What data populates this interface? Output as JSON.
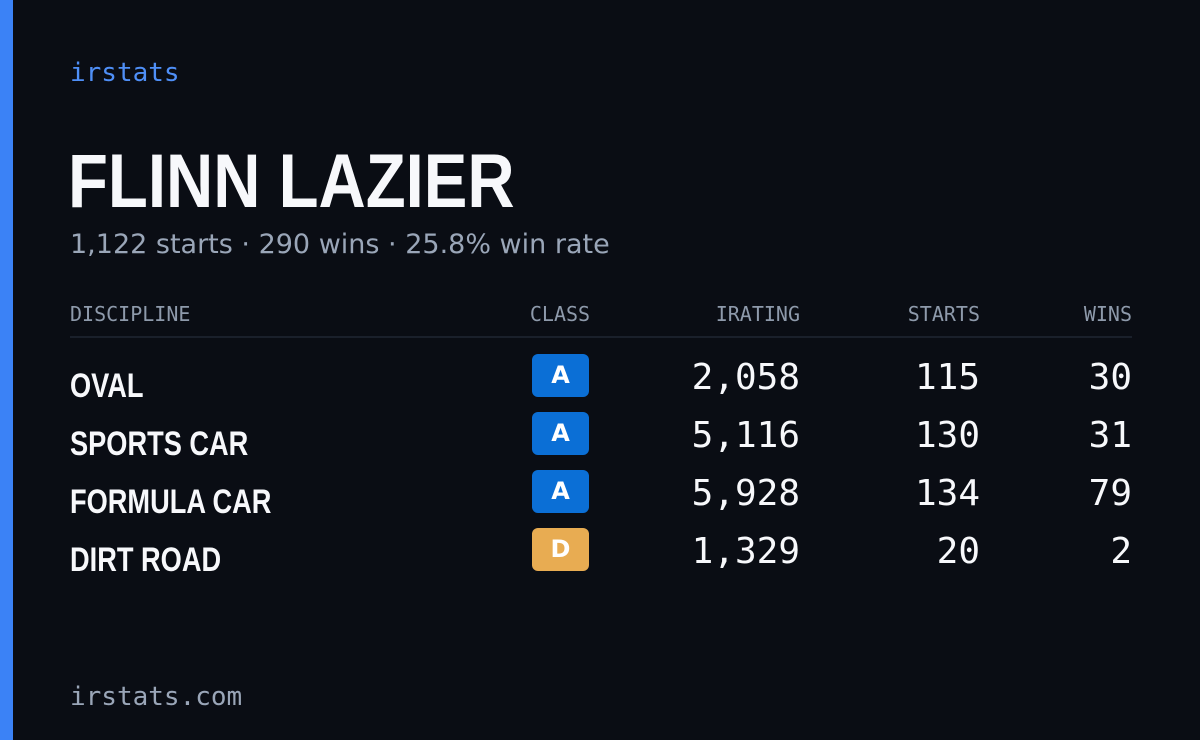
{
  "brand": "irstats",
  "driver": {
    "name": "FLINN LAZIER",
    "summary": "1,122 starts · 290 wins · 25.8% win rate"
  },
  "table": {
    "headers": {
      "discipline": "DISCIPLINE",
      "class": "CLASS",
      "irating": "IRATING",
      "starts": "STARTS",
      "wins": "WINS"
    },
    "rows": [
      {
        "discipline": "OVAL",
        "class": "A",
        "irating": "2,058",
        "starts": "115",
        "wins": "30"
      },
      {
        "discipline": "SPORTS CAR",
        "class": "A",
        "irating": "5,116",
        "starts": "130",
        "wins": "31"
      },
      {
        "discipline": "FORMULA CAR",
        "class": "A",
        "irating": "5,928",
        "starts": "134",
        "wins": "79"
      },
      {
        "discipline": "DIRT ROAD",
        "class": "D",
        "irating": "1,329",
        "starts": "20",
        "wins": "2"
      }
    ]
  },
  "class_colors": {
    "A": {
      "bg": "#0b6fd6",
      "fg": "#ffffff"
    },
    "D": {
      "bg": "#e8ac52",
      "fg": "#ffffff"
    }
  },
  "accent_color": "#3b82f6",
  "footer": "irstats.com"
}
